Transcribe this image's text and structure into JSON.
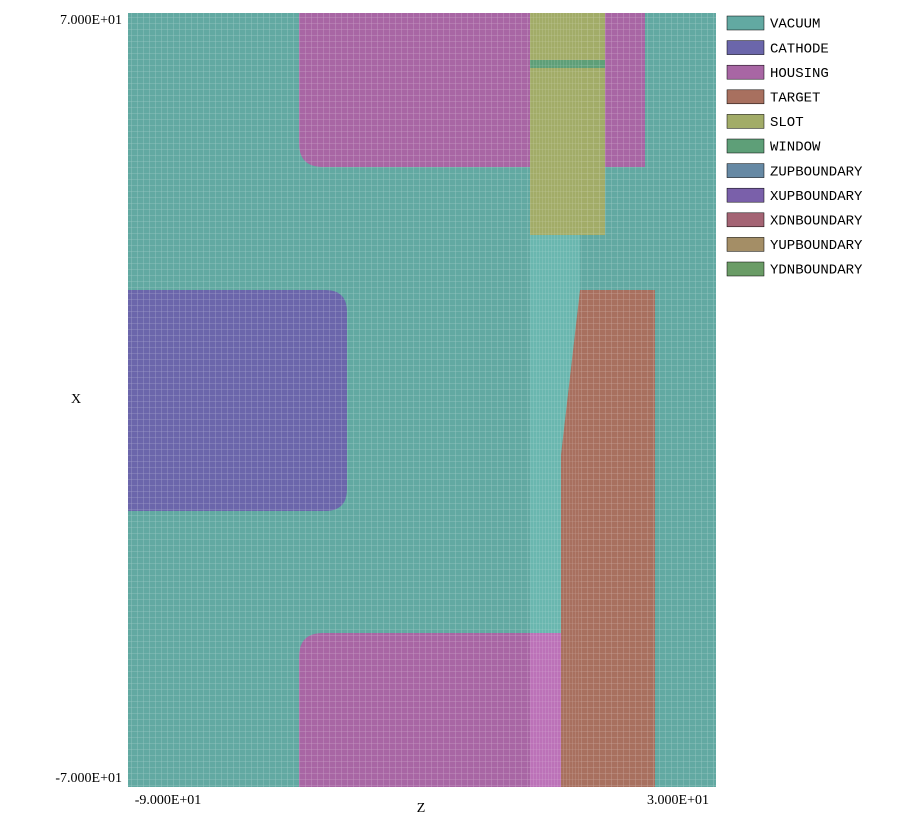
{
  "plot": {
    "axis_labels": {
      "x": "Z",
      "y": "X"
    },
    "limit_labels": {
      "x_min": "-9.000E+01",
      "x_max": "3.000E+01",
      "y_min": "-7.000E+01",
      "y_max": "7.000E+01"
    },
    "legend": [
      {
        "name": "VACUUM",
        "color": "#62a9a2"
      },
      {
        "name": "CATHODE",
        "color": "#6b66ab"
      },
      {
        "name": "HOUSING",
        "color": "#a866a4"
      },
      {
        "name": "TARGET",
        "color": "#a8705f"
      },
      {
        "name": "SLOT",
        "color": "#a2ac68"
      },
      {
        "name": "WINDOW",
        "color": "#5e9f78"
      },
      {
        "name": "ZUPBOUNDARY",
        "color": "#6689a4"
      },
      {
        "name": "XUPBOUNDARY",
        "color": "#7a60aa"
      },
      {
        "name": "XDNBOUNDARY",
        "color": "#a46474"
      },
      {
        "name": "YUPBOUNDARY",
        "color": "#a48e66"
      },
      {
        "name": "YDNBOUNDARY",
        "color": "#6a9c66"
      }
    ]
  }
}
